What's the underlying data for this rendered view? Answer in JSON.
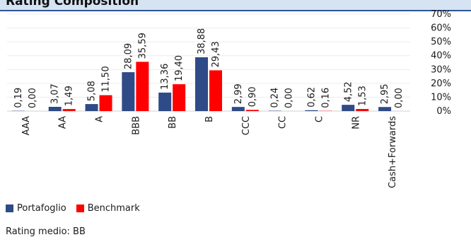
{
  "header": {
    "title": "Rating Composition"
  },
  "chart_data": {
    "type": "bar",
    "categories": [
      "AAA",
      "AA",
      "A",
      "BBB",
      "BB",
      "B",
      "CCC",
      "CC",
      "C",
      "NR",
      "Cash+Forwards"
    ],
    "series": [
      {
        "name": "Portafoglio",
        "color": "#2e4a87",
        "values": [
          0.19,
          3.07,
          5.08,
          28.09,
          13.36,
          38.88,
          2.99,
          0.24,
          0.62,
          4.52,
          2.95
        ],
        "labels": [
          "0,19",
          "3,07",
          "5,08",
          "28,09",
          "13,36",
          "38,88",
          "2,99",
          "0,24",
          "0,62",
          "4,52",
          "2,95"
        ]
      },
      {
        "name": "Benchmark",
        "color": "#ff0000",
        "values": [
          0.0,
          1.49,
          11.5,
          35.59,
          19.4,
          29.43,
          0.9,
          0.0,
          0.16,
          1.53,
          0.0
        ],
        "labels": [
          "0,00",
          "1,49",
          "11,50",
          "35,59",
          "19,40",
          "29,43",
          "0,90",
          "0,00",
          "0,16",
          "1,53",
          "0,00"
        ]
      }
    ],
    "y_ticks": [
      "0%",
      "10%",
      "20%",
      "30%",
      "40%",
      "50%",
      "60%",
      "70%"
    ],
    "ylim": [
      0,
      70
    ],
    "grid": true,
    "legend_position": "bottom-left"
  },
  "footer": {
    "text": "Rating medio: BB"
  }
}
